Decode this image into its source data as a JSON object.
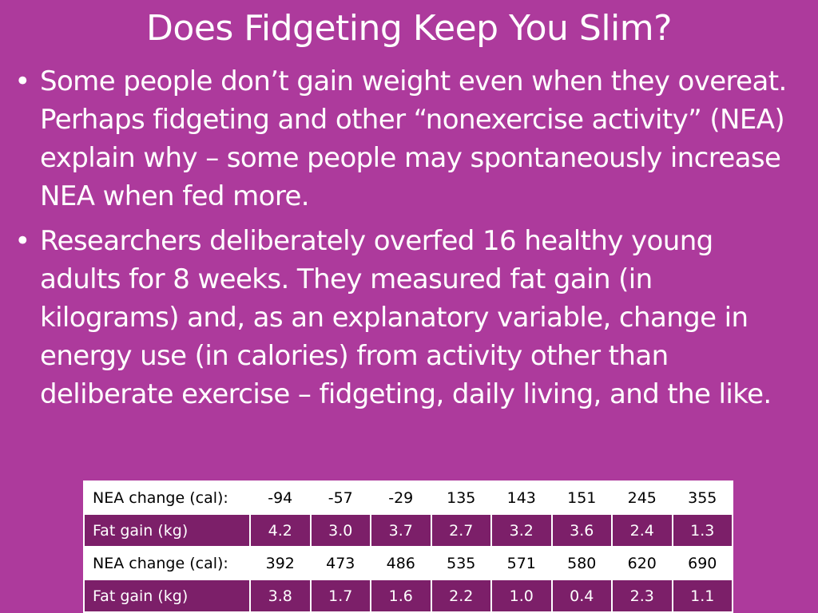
{
  "title": "Does Fidgeting Keep You Slim?",
  "bullets": [
    {
      "marker": "•",
      "text": "Some people don’t gain weight even when they overeat.  Perhaps fidgeting and other “nonexercise activity” (NEA) explain why – some people may spontaneously increase NEA when fed more."
    },
    {
      "marker": "•",
      "text": "Researchers deliberately overfed 16 healthy young adults for 8 weeks.  They measured fat gain (in kilograms) and, as an explanatory variable, change in energy use (in calories) from activity other than deliberate exercise – fidgeting, daily living, and the like."
    }
  ],
  "table": {
    "rows": [
      {
        "label": "NEA change (cal):",
        "values": [
          "-94",
          "-57",
          "-29",
          "135",
          "143",
          "151",
          "245",
          "355"
        ]
      },
      {
        "label": "Fat gain (kg)",
        "values": [
          "4.2",
          "3.0",
          "3.7",
          "2.7",
          "3.2",
          "3.6",
          "2.4",
          "1.3"
        ]
      },
      {
        "label": "NEA change (cal):",
        "values": [
          "392",
          "473",
          "486",
          "535",
          "571",
          "580",
          "620",
          "690"
        ]
      },
      {
        "label": "Fat gain (kg)",
        "values": [
          "3.8",
          "1.7",
          "1.6",
          "2.2",
          "1.0",
          "0.4",
          "2.3",
          "1.1"
        ]
      }
    ]
  },
  "colors": {
    "background": "#ad3a9c",
    "table_dark_row": "#7c1f69",
    "table_light_row": "#ffffff"
  }
}
